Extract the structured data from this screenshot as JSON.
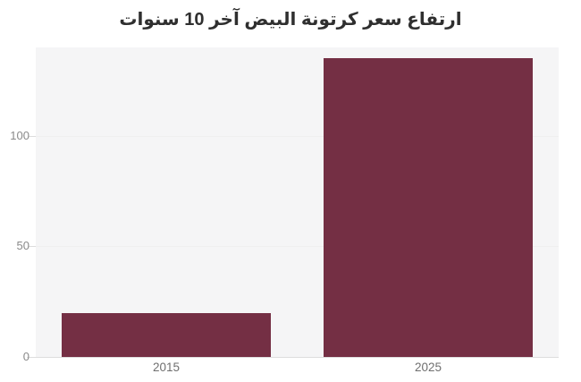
{
  "chart_data": {
    "type": "bar",
    "title": "ارتفاع سعر كرتونة البيض آخر 10 سنوات",
    "categories": [
      "2015",
      "2025"
    ],
    "values": [
      20,
      135
    ],
    "xlabel": "",
    "ylabel": "",
    "ylim": [
      0,
      140
    ],
    "yticks": [
      0,
      50,
      100
    ],
    "grid": true,
    "legend": false,
    "colors": {
      "bar": "#742f44",
      "plot_background": "#f5f5f6",
      "gridline": "#efefef",
      "tick_mark": "#dcdcdc",
      "baseline": "#dedede",
      "ytick_label": "#8a8a8a",
      "xtick_label": "#6f6f6f",
      "title": "#2f2f2f",
      "page_background": "#ffffff"
    }
  }
}
